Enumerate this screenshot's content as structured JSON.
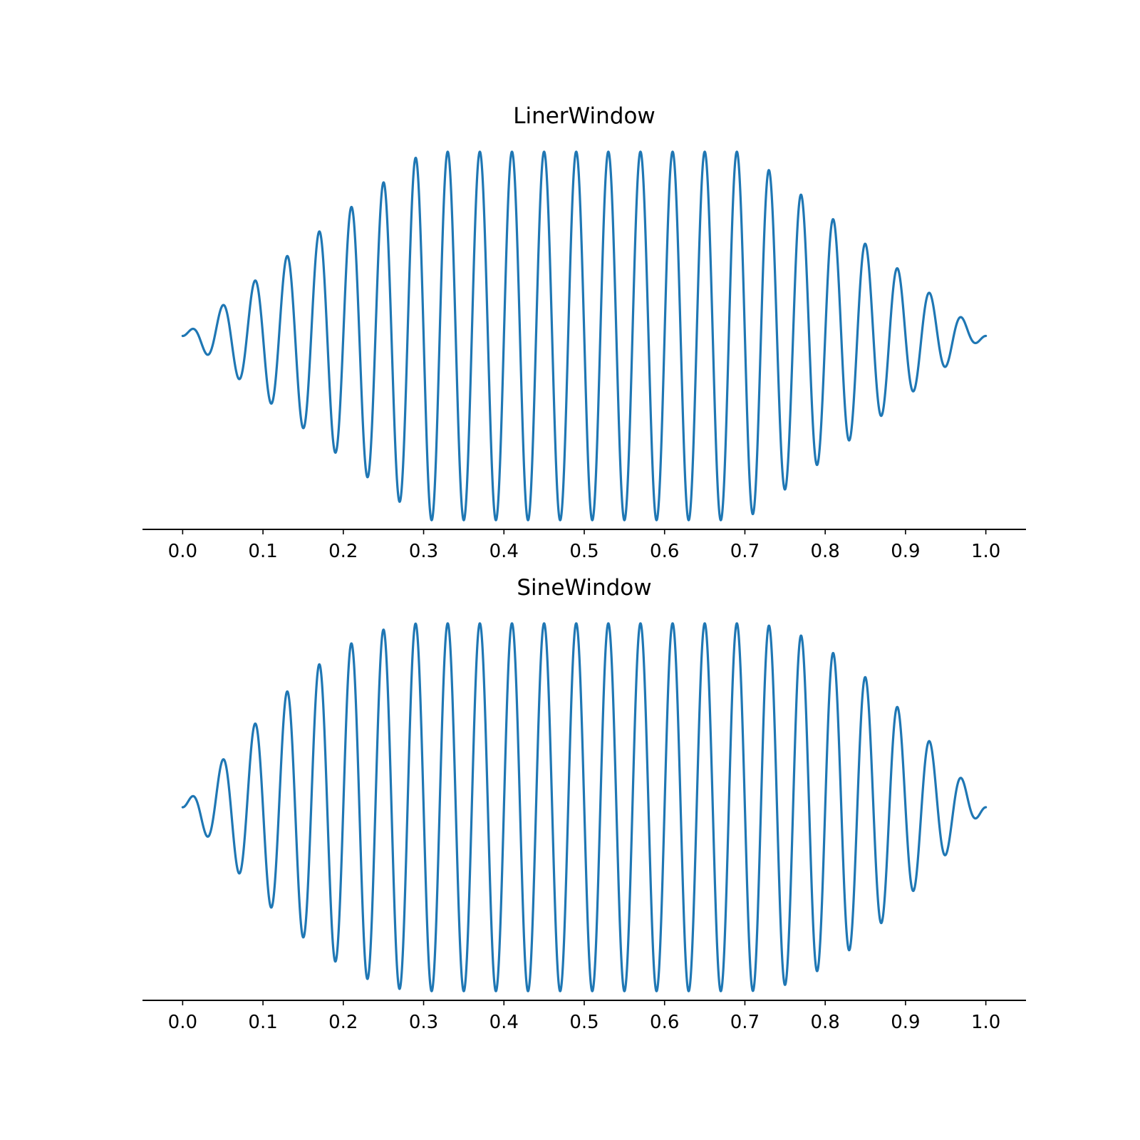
{
  "chart_data": [
    {
      "type": "line",
      "title": "LinerWindow",
      "xlabel": "",
      "ylabel": "",
      "xlim": [
        -0.05,
        1.05
      ],
      "ylim": [
        -1.05,
        1.05
      ],
      "xticks": [
        "0.0",
        "0.1",
        "0.2",
        "0.3",
        "0.4",
        "0.5",
        "0.6",
        "0.7",
        "0.8",
        "0.9",
        "1.0"
      ],
      "y_axis_visible": false,
      "grid": false,
      "color": "#1f77b4",
      "series": [
        {
          "signal": "sin(2*pi*25*x) multiplied by a trapezoidal (linear ramp) window",
          "frequency_cycles": 25,
          "window": "linear",
          "ramp_up_end": 0.3,
          "ramp_down_start": 0.7,
          "x": [
            0.0,
            0.05,
            0.09,
            0.13,
            0.17,
            0.21,
            0.25,
            0.29,
            0.33,
            0.37,
            0.41,
            0.45,
            0.49,
            0.53,
            0.57,
            0.61,
            0.65,
            0.69,
            0.73,
            0.77,
            0.81,
            0.85,
            0.89,
            0.93,
            0.97,
            1.0
          ],
          "peak_values": [
            0.0,
            0.17,
            0.3,
            0.43,
            0.57,
            0.7,
            0.83,
            0.97,
            1.0,
            1.0,
            1.0,
            1.0,
            1.0,
            1.0,
            1.0,
            1.0,
            1.0,
            1.0,
            0.9,
            0.77,
            0.63,
            0.5,
            0.37,
            0.23,
            0.1,
            0.0
          ]
        }
      ]
    },
    {
      "type": "line",
      "title": "SineWindow",
      "xlabel": "",
      "ylabel": "",
      "xlim": [
        -0.05,
        1.05
      ],
      "ylim": [
        -1.05,
        1.05
      ],
      "xticks": [
        "0.0",
        "0.1",
        "0.2",
        "0.3",
        "0.4",
        "0.5",
        "0.6",
        "0.7",
        "0.8",
        "0.9",
        "1.0"
      ],
      "y_axis_visible": false,
      "grid": false,
      "color": "#1f77b4",
      "series": [
        {
          "signal": "sin(2*pi*25*x) multiplied by a sine-tapered window",
          "frequency_cycles": 25,
          "window": "sine",
          "ramp_up_end": 0.3,
          "ramp_down_start": 0.7,
          "x": [
            0.0,
            0.05,
            0.09,
            0.13,
            0.17,
            0.21,
            0.25,
            0.29,
            0.33,
            0.37,
            0.41,
            0.45,
            0.49,
            0.53,
            0.57,
            0.61,
            0.65,
            0.69,
            0.73,
            0.77,
            0.81,
            0.85,
            0.89,
            0.93,
            0.97,
            1.0
          ],
          "peak_values": [
            0.0,
            0.27,
            0.47,
            0.64,
            0.78,
            0.89,
            0.97,
            1.0,
            1.0,
            1.0,
            1.0,
            1.0,
            1.0,
            1.0,
            1.0,
            1.0,
            1.0,
            1.0,
            0.99,
            0.93,
            0.85,
            0.72,
            0.56,
            0.37,
            0.16,
            0.0
          ]
        }
      ]
    }
  ]
}
